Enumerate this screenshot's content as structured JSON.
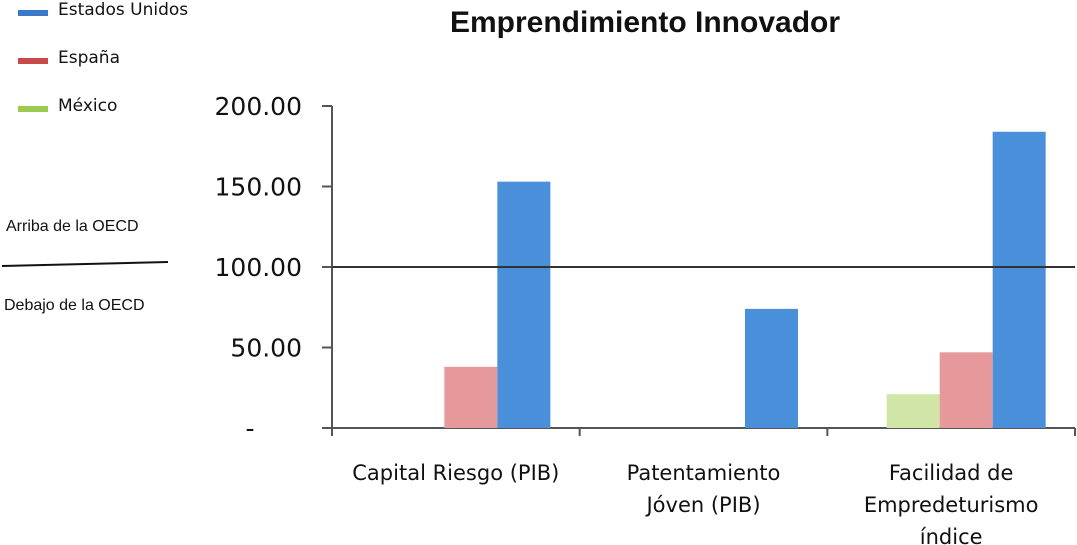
{
  "colors": {
    "estados_unidos": "#4a8fd9",
    "espana": "#e6999b",
    "mexico": "#d0e5a6",
    "axis": "#555555",
    "reference_line": "#333333"
  },
  "legend": {
    "items": [
      {
        "label": "Estados Unidos",
        "swatch_color": "#3b78c7"
      },
      {
        "label": "España",
        "swatch_color": "#c84a4a"
      },
      {
        "label": "México",
        "swatch_color": "#9cc94f"
      }
    ]
  },
  "annotations": {
    "above": "Arriba de la OECD",
    "below": "Debajo  de la OECD"
  },
  "chart_data": {
    "type": "bar",
    "title": "Emprendimiento Innovador",
    "categories": [
      [
        "Capital Riesgo (PIB)"
      ],
      [
        "Patentamiento",
        "Jóven (PIB)"
      ],
      [
        "Facilidad de",
        "Empredeturismo",
        "índice"
      ]
    ],
    "series": [
      {
        "name": "México",
        "values": [
          null,
          null,
          21
        ]
      },
      {
        "name": "España",
        "values": [
          38,
          null,
          47
        ]
      },
      {
        "name": "Estados Unidos",
        "values": [
          153,
          74,
          184
        ]
      }
    ],
    "ylim": [
      0,
      200
    ],
    "yticks": [
      {
        "value": 0,
        "label": "-"
      },
      {
        "value": 50,
        "label": "50.00"
      },
      {
        "value": 100,
        "label": "100.00"
      },
      {
        "value": 150,
        "label": "150.00"
      },
      {
        "value": 200,
        "label": "200.00"
      }
    ],
    "reference_value": 100,
    "legend_position": "top-left"
  }
}
